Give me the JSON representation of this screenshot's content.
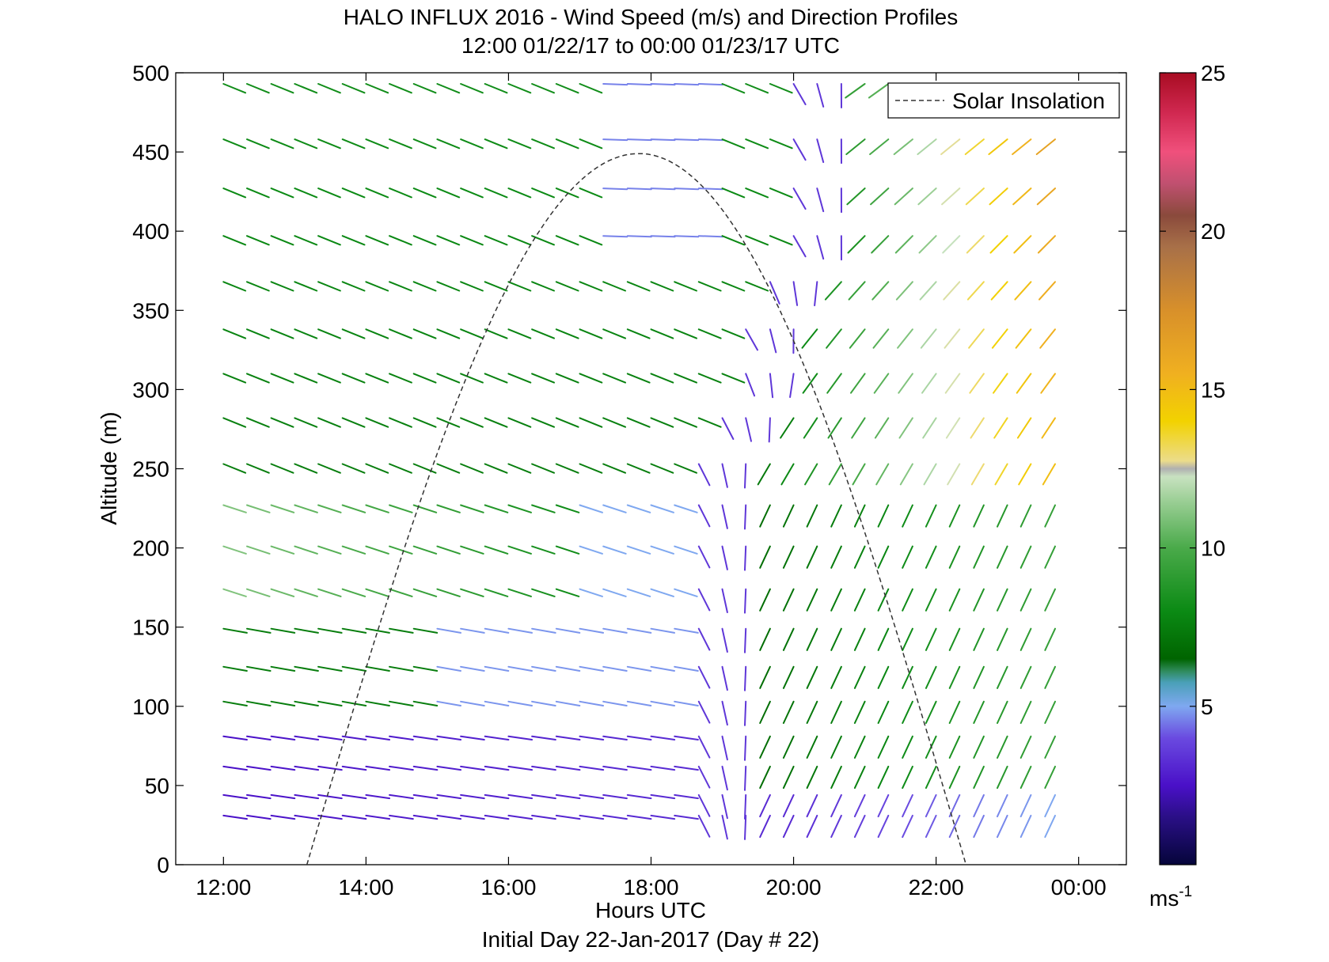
{
  "chart_data": {
    "type": "quiver",
    "title_line1": "HALO INFLUX 2016 - Wind Speed (m/s) and Direction Profiles",
    "title_line2": "12:00 01/22/17 to 00:00 01/23/17  UTC",
    "xlabel": "Hours UTC",
    "xlabel2": "Initial Day 22-Jan-2017 (Day # 22)",
    "ylabel": "Altitude (m)",
    "x_ticks": [
      12,
      14,
      16,
      18,
      20,
      22,
      24
    ],
    "x_tick_labels": [
      "12:00",
      "14:00",
      "16:00",
      "18:00",
      "20:00",
      "22:00",
      "00:00"
    ],
    "xlim": [
      11.33,
      24.67
    ],
    "y_ticks": [
      0,
      50,
      100,
      150,
      200,
      250,
      300,
      350,
      400,
      450,
      500
    ],
    "y_tick_labels": [
      "0",
      "50",
      "100",
      "150",
      "200",
      "250",
      "300",
      "350",
      "400",
      "450",
      "500"
    ],
    "ylim": [
      0,
      500
    ],
    "legend": {
      "entries": [
        "Solar Insolation"
      ],
      "placement": "top-right"
    },
    "colorbar": {
      "ticks": [
        5,
        10,
        15,
        20,
        25
      ],
      "tick_labels": [
        "5",
        "10",
        "15",
        "20",
        "25"
      ],
      "range": [
        0,
        25
      ],
      "unit_label": "ms",
      "unit_exponent": "-1"
    },
    "solar_insolation": {
      "style": "dashed",
      "start_hour": 13.17,
      "peak_hour": 17.83,
      "end_hour": 22.42,
      "peak_altitude": 449
    },
    "altitudes": [
      31,
      44,
      62,
      81,
      103,
      125,
      149,
      174,
      201,
      227,
      253,
      282,
      310,
      338,
      368,
      397,
      427,
      458,
      493
    ],
    "hours": [
      12.0,
      12.33,
      12.67,
      13.0,
      13.33,
      13.67,
      14.0,
      14.33,
      14.67,
      15.0,
      15.33,
      15.67,
      16.0,
      16.33,
      16.67,
      17.0,
      17.33,
      17.67,
      18.0,
      18.33,
      18.67,
      19.0,
      19.33,
      19.67,
      20.0,
      20.33,
      20.67,
      21.0,
      21.33,
      21.67,
      22.0,
      22.33,
      22.67,
      23.0,
      23.33,
      23.67
    ],
    "direction_convention": "degrees from north the arrow points to",
    "wind_zones": [
      {
        "region": "low levels, 12:00-18:30",
        "speed_ms": [
          2,
          4
        ],
        "direction_deg": [
          95,
          100
        ]
      },
      {
        "region": "mid levels, 12:00-17:00",
        "speed_ms": [
          6,
          11
        ],
        "direction_deg": [
          100,
          115
        ]
      },
      {
        "region": "upper levels, 12:00-19:00",
        "speed_ms": [
          7,
          9
        ],
        "direction_deg": [
          110,
          120
        ]
      },
      {
        "region": "transition near 18:30-19:30",
        "speed_ms": [
          3,
          5
        ],
        "direction_deg": [
          150,
          185
        ]
      },
      {
        "region": "after 20:00 low-mid levels",
        "speed_ms": [
          6,
          9
        ],
        "direction_deg": [
          200,
          210
        ]
      },
      {
        "region": "after 21:30 upper levels",
        "speed_ms": [
          10,
          16
        ],
        "direction_deg": [
          225,
          235
        ]
      }
    ]
  }
}
